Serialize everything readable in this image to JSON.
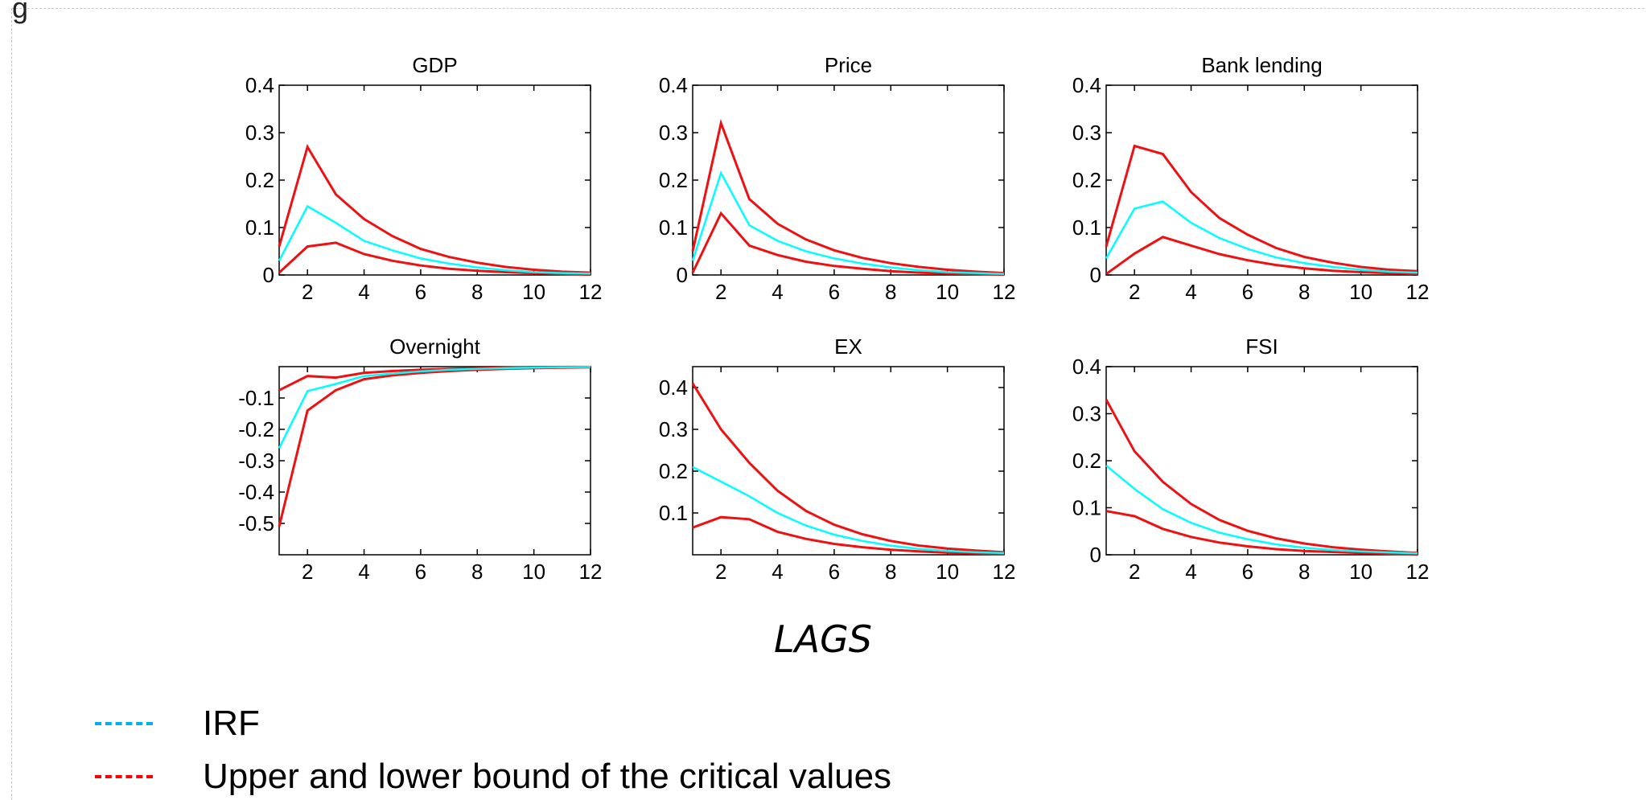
{
  "corner_text": "g",
  "xaxis_caption": "LAGS",
  "legend": [
    {
      "label": "IRF",
      "color": "#00b0f0"
    },
    {
      "label": "Upper and lower bound of the critical values",
      "color": "#ff0000"
    }
  ],
  "colors": {
    "irf": "#00ffff",
    "bounds": "#ee1111",
    "axis": "#000000"
  },
  "chart_data": [
    {
      "type": "line",
      "title": "GDP",
      "xlim": [
        1,
        12
      ],
      "ylim": [
        0,
        0.4
      ],
      "xticks": [
        2,
        4,
        6,
        8,
        10,
        12
      ],
      "yticks": [
        0,
        0.1,
        0.2,
        0.3,
        0.4
      ],
      "ytick_labels": [
        "0",
        "0.1",
        "0.2",
        "0.3",
        "0.4"
      ],
      "x": [
        1,
        2,
        3,
        4,
        5,
        6,
        7,
        8,
        9,
        10,
        11,
        12
      ],
      "series": [
        {
          "role": "irf",
          "values": [
            0.03,
            0.145,
            0.11,
            0.072,
            0.052,
            0.035,
            0.024,
            0.016,
            0.01,
            0.006,
            0.004,
            0.003
          ]
        },
        {
          "role": "upper",
          "values": [
            0.06,
            0.27,
            0.17,
            0.118,
            0.082,
            0.055,
            0.038,
            0.026,
            0.017,
            0.011,
            0.007,
            0.005
          ]
        },
        {
          "role": "lower",
          "values": [
            0.005,
            0.06,
            0.068,
            0.044,
            0.03,
            0.02,
            0.013,
            0.009,
            0.006,
            0.004,
            0.002,
            0.001
          ]
        }
      ]
    },
    {
      "type": "line",
      "title": "Price",
      "xlim": [
        1,
        12
      ],
      "ylim": [
        0,
        0.4
      ],
      "xticks": [
        2,
        4,
        6,
        8,
        10,
        12
      ],
      "yticks": [
        0,
        0.1,
        0.2,
        0.3,
        0.4
      ],
      "ytick_labels": [
        "0",
        "0.1",
        "0.2",
        "0.3",
        "0.4"
      ],
      "x": [
        1,
        2,
        3,
        4,
        5,
        6,
        7,
        8,
        9,
        10,
        11,
        12
      ],
      "series": [
        {
          "role": "irf",
          "values": [
            0.03,
            0.215,
            0.105,
            0.072,
            0.05,
            0.035,
            0.024,
            0.016,
            0.01,
            0.006,
            0.004,
            0.002
          ]
        },
        {
          "role": "upper",
          "values": [
            0.05,
            0.32,
            0.16,
            0.108,
            0.075,
            0.052,
            0.036,
            0.025,
            0.017,
            0.011,
            0.007,
            0.004
          ]
        },
        {
          "role": "lower",
          "values": [
            0.005,
            0.13,
            0.062,
            0.042,
            0.028,
            0.019,
            0.013,
            0.008,
            0.005,
            0.003,
            0.002,
            0.001
          ]
        }
      ]
    },
    {
      "type": "line",
      "title": "Bank lending",
      "xlim": [
        1,
        12
      ],
      "ylim": [
        0,
        0.4
      ],
      "xticks": [
        2,
        4,
        6,
        8,
        10,
        12
      ],
      "yticks": [
        0,
        0.1,
        0.2,
        0.3,
        0.4
      ],
      "ytick_labels": [
        "0",
        "0.1",
        "0.2",
        "0.3",
        "0.4"
      ],
      "x": [
        1,
        2,
        3,
        4,
        5,
        6,
        7,
        8,
        9,
        10,
        11,
        12
      ],
      "series": [
        {
          "role": "irf",
          "values": [
            0.035,
            0.14,
            0.155,
            0.11,
            0.078,
            0.055,
            0.037,
            0.025,
            0.017,
            0.011,
            0.007,
            0.005
          ]
        },
        {
          "role": "upper",
          "values": [
            0.06,
            0.272,
            0.255,
            0.175,
            0.12,
            0.085,
            0.057,
            0.038,
            0.026,
            0.017,
            0.011,
            0.008
          ]
        },
        {
          "role": "lower",
          "values": [
            0.002,
            0.045,
            0.08,
            0.062,
            0.044,
            0.031,
            0.021,
            0.014,
            0.009,
            0.006,
            0.004,
            0.002
          ]
        }
      ]
    },
    {
      "type": "line",
      "title": "Overnight",
      "xlim": [
        1,
        12
      ],
      "ylim": [
        -0.6,
        0
      ],
      "xticks": [
        2,
        4,
        6,
        8,
        10,
        12
      ],
      "yticks": [
        -0.5,
        -0.4,
        -0.3,
        -0.2,
        -0.1
      ],
      "ytick_labels": [
        "-0.5",
        "-0.4",
        "-0.3",
        "-0.2",
        "-0.1"
      ],
      "x": [
        1,
        2,
        3,
        4,
        5,
        6,
        7,
        8,
        9,
        10,
        11,
        12
      ],
      "series": [
        {
          "role": "irf",
          "values": [
            -0.26,
            -0.078,
            -0.055,
            -0.03,
            -0.022,
            -0.015,
            -0.01,
            -0.007,
            -0.005,
            -0.003,
            -0.002,
            -0.001
          ]
        },
        {
          "role": "upper",
          "values": [
            -0.075,
            -0.03,
            -0.035,
            -0.02,
            -0.014,
            -0.01,
            -0.007,
            -0.005,
            -0.003,
            -0.002,
            -0.001,
            -0.001
          ]
        },
        {
          "role": "lower",
          "values": [
            -0.51,
            -0.14,
            -0.075,
            -0.04,
            -0.028,
            -0.02,
            -0.014,
            -0.01,
            -0.007,
            -0.005,
            -0.003,
            -0.002
          ]
        }
      ]
    },
    {
      "type": "line",
      "title": "EX",
      "xlim": [
        1,
        12
      ],
      "ylim": [
        0,
        0.45
      ],
      "xticks": [
        2,
        4,
        6,
        8,
        10,
        12
      ],
      "yticks": [
        0.1,
        0.2,
        0.3,
        0.4
      ],
      "ytick_labels": [
        "0.1",
        "0.2",
        "0.3",
        "0.4"
      ],
      "x": [
        1,
        2,
        3,
        4,
        5,
        6,
        7,
        8,
        9,
        10,
        11,
        12
      ],
      "series": [
        {
          "role": "irf",
          "values": [
            0.21,
            0.175,
            0.14,
            0.1,
            0.07,
            0.048,
            0.033,
            0.022,
            0.014,
            0.009,
            0.006,
            0.004
          ]
        },
        {
          "role": "upper",
          "values": [
            0.41,
            0.3,
            0.22,
            0.153,
            0.105,
            0.072,
            0.049,
            0.033,
            0.022,
            0.015,
            0.01,
            0.006
          ]
        },
        {
          "role": "lower",
          "values": [
            0.065,
            0.09,
            0.085,
            0.055,
            0.038,
            0.026,
            0.018,
            0.012,
            0.008,
            0.005,
            0.003,
            0.002
          ]
        }
      ]
    },
    {
      "type": "line",
      "title": "FSI",
      "xlim": [
        1,
        12
      ],
      "ylim": [
        0,
        0.4
      ],
      "xticks": [
        2,
        4,
        6,
        8,
        10,
        12
      ],
      "yticks": [
        0,
        0.1,
        0.2,
        0.3,
        0.4
      ],
      "ytick_labels": [
        "0",
        "0.1",
        "0.2",
        "0.3",
        "0.4"
      ],
      "x": [
        1,
        2,
        3,
        4,
        5,
        6,
        7,
        8,
        9,
        10,
        11,
        12
      ],
      "series": [
        {
          "role": "irf",
          "values": [
            0.19,
            0.14,
            0.097,
            0.068,
            0.047,
            0.033,
            0.022,
            0.015,
            0.01,
            0.007,
            0.005,
            0.003
          ]
        },
        {
          "role": "upper",
          "values": [
            0.33,
            0.22,
            0.155,
            0.108,
            0.074,
            0.051,
            0.035,
            0.024,
            0.016,
            0.011,
            0.007,
            0.004
          ]
        },
        {
          "role": "lower",
          "values": [
            0.093,
            0.082,
            0.055,
            0.038,
            0.026,
            0.018,
            0.012,
            0.008,
            0.006,
            0.004,
            0.002,
            0.001
          ]
        }
      ]
    }
  ]
}
